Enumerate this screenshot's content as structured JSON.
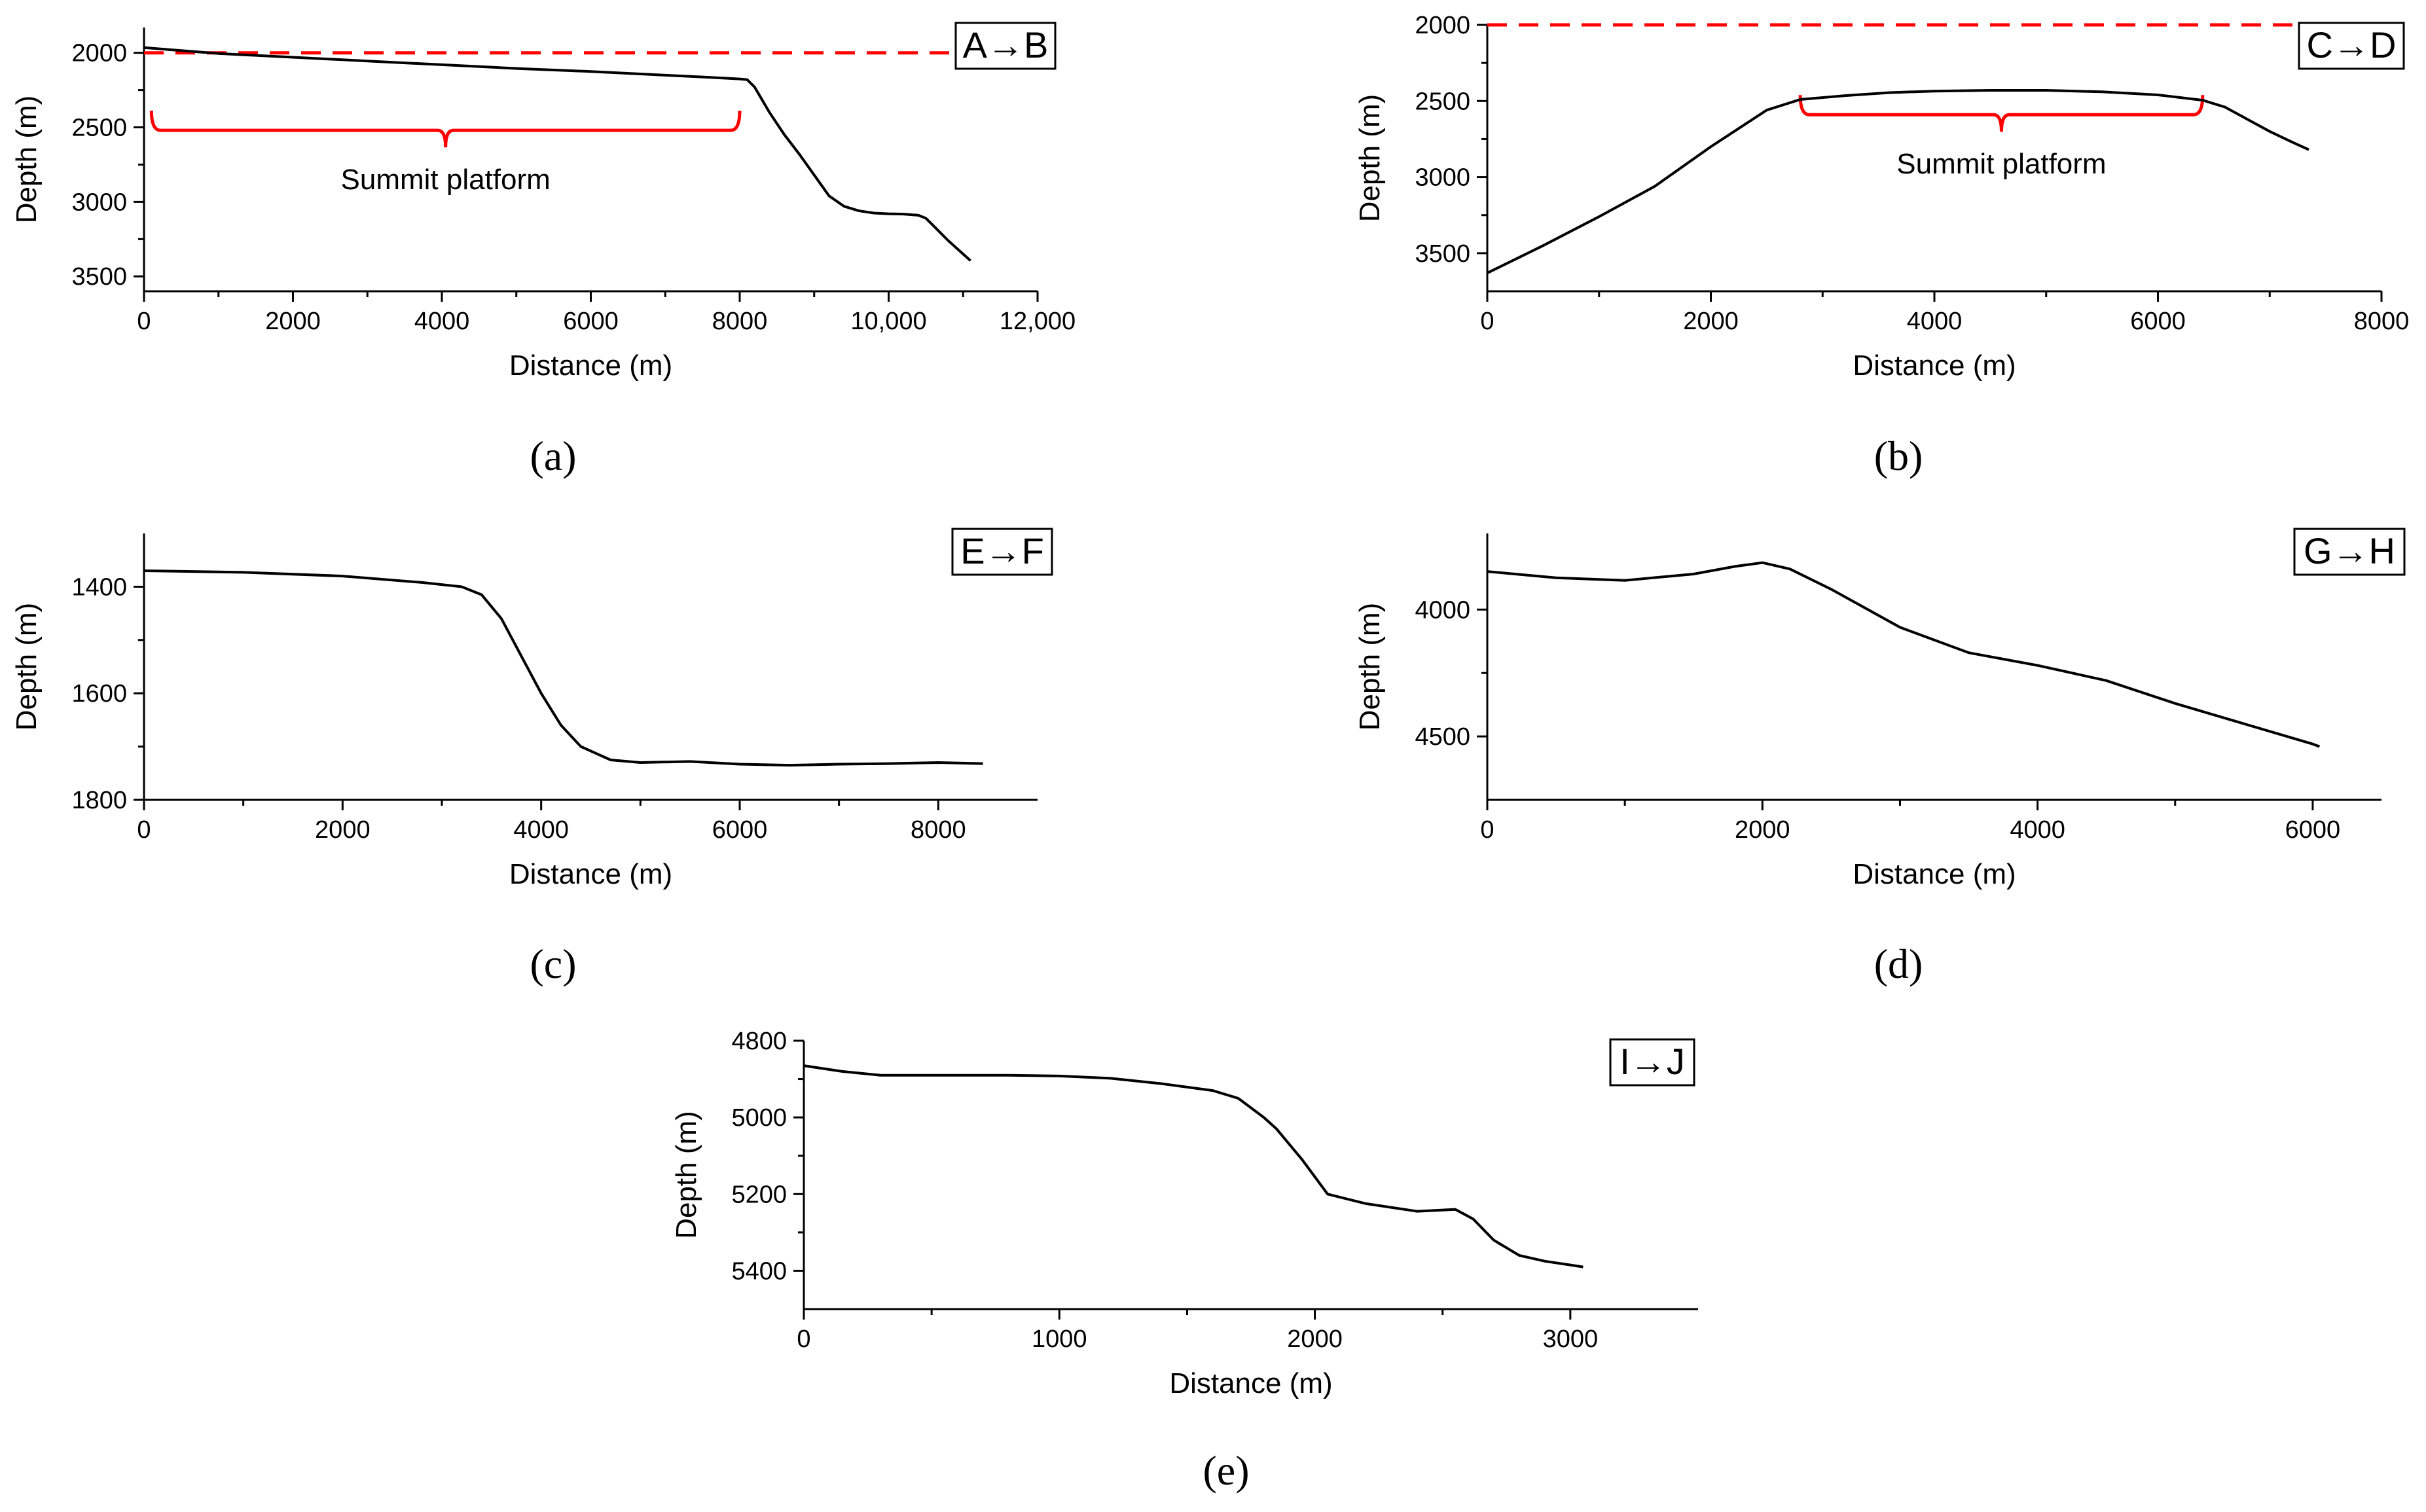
{
  "figure": {
    "captions": [
      "(a)",
      "(b)",
      "(c)",
      "(d)",
      "(e)"
    ]
  },
  "chart_data": [
    {
      "id": "a",
      "type": "line",
      "legend": "A→B",
      "xlabel": "Distance (m)",
      "ylabel": "Depth (m)",
      "xlim": [
        0,
        12000
      ],
      "ylim": [
        1830,
        3600
      ],
      "x_ticks": [
        0,
        2000,
        4000,
        6000,
        8000,
        10000,
        12000
      ],
      "x_tick_labels": [
        "0",
        "2000",
        "4000",
        "6000",
        "8000",
        "10,000",
        "12,000"
      ],
      "y_ticks": [
        2000,
        2500,
        3000,
        3500
      ],
      "y_tick_labels": [
        "2000",
        "2500",
        "3000",
        "3500"
      ],
      "y_inverted": true,
      "series": [
        {
          "name": "A→B",
          "x": [
            0,
            500,
            1000,
            2000,
            3000,
            4000,
            5000,
            6000,
            7000,
            7500,
            8000,
            8100,
            8200,
            8400,
            8600,
            8800,
            9000,
            9200,
            9400,
            9600,
            9800,
            10000,
            10200,
            10400,
            10500,
            10600,
            10800,
            11000,
            11100
          ],
          "y": [
            1965,
            1985,
            2005,
            2030,
            2055,
            2080,
            2105,
            2125,
            2150,
            2162,
            2175,
            2180,
            2230,
            2400,
            2550,
            2680,
            2820,
            2960,
            3030,
            3060,
            3075,
            3080,
            3082,
            3090,
            3110,
            3160,
            3260,
            3350,
            3395
          ]
        }
      ],
      "reference_line": {
        "y": 2000,
        "color": "#ff0000",
        "style": "dashed"
      },
      "bracket": {
        "x_start": 100,
        "x_end": 8000,
        "y": 2520,
        "color": "#ff0000"
      },
      "annotation": "Summit platform"
    },
    {
      "id": "b",
      "type": "line",
      "legend": "C→D",
      "xlabel": "Distance (m)",
      "ylabel": "Depth (m)",
      "xlim": [
        0,
        8000
      ],
      "ylim": [
        2000,
        3750
      ],
      "x_ticks": [
        0,
        2000,
        4000,
        6000,
        8000
      ],
      "x_tick_labels": [
        "0",
        "2000",
        "4000",
        "6000",
        "8000"
      ],
      "y_ticks": [
        2000,
        2500,
        3000,
        3500
      ],
      "y_tick_labels": [
        "2000",
        "2500",
        "3000",
        "3500"
      ],
      "y_inverted": true,
      "series": [
        {
          "name": "C→D",
          "x": [
            0,
            500,
            1000,
            1500,
            2000,
            2500,
            2800,
            3200,
            3600,
            4000,
            4500,
            5000,
            5500,
            6000,
            6400,
            6600,
            6800,
            7000,
            7200,
            7350
          ],
          "y": [
            3630,
            3450,
            3260,
            3060,
            2800,
            2560,
            2490,
            2465,
            2445,
            2435,
            2430,
            2430,
            2440,
            2460,
            2495,
            2540,
            2620,
            2700,
            2770,
            2820
          ]
        }
      ],
      "reference_line": {
        "y": 2000,
        "color": "#ff0000",
        "style": "dashed"
      },
      "bracket": {
        "x_start": 2800,
        "x_end": 6400,
        "y": 2590,
        "color": "#ff0000"
      },
      "annotation": "Summit platform"
    },
    {
      "id": "c",
      "type": "line",
      "legend": "E→F",
      "xlabel": "Distance (m)",
      "ylabel": "Depth (m)",
      "xlim": [
        0,
        9000
      ],
      "ylim": [
        1300,
        1800
      ],
      "x_ticks": [
        0,
        2000,
        4000,
        6000,
        8000
      ],
      "x_tick_labels": [
        "0",
        "2000",
        "4000",
        "6000",
        "8000"
      ],
      "y_ticks": [
        1400,
        1600,
        1800
      ],
      "y_tick_labels": [
        "1400",
        "1600",
        "1800"
      ],
      "y_inverted": true,
      "series": [
        {
          "name": "E→F",
          "x": [
            0,
            1000,
            2000,
            2800,
            3200,
            3400,
            3600,
            3800,
            4000,
            4200,
            4400,
            4700,
            5000,
            5500,
            6000,
            6500,
            7000,
            7500,
            8000,
            8450
          ],
          "y": [
            1370,
            1373,
            1380,
            1392,
            1400,
            1415,
            1460,
            1530,
            1600,
            1660,
            1700,
            1725,
            1730,
            1728,
            1733,
            1735,
            1733,
            1732,
            1730,
            1732
          ]
        }
      ]
    },
    {
      "id": "d",
      "type": "line",
      "legend": "G→H",
      "xlabel": "Distance (m)",
      "ylabel": "Depth (m)",
      "xlim": [
        0,
        6500
      ],
      "ylim": [
        3700,
        4750
      ],
      "x_ticks": [
        0,
        2000,
        4000,
        6000
      ],
      "x_tick_labels": [
        "0",
        "2000",
        "4000",
        "6000"
      ],
      "y_ticks": [
        4000,
        4500
      ],
      "y_tick_labels": [
        "4000",
        "4500"
      ],
      "y_inverted": true,
      "series": [
        {
          "name": "G→H",
          "x": [
            0,
            500,
            1000,
            1500,
            1800,
            2000,
            2200,
            2500,
            3000,
            3500,
            4000,
            4500,
            5000,
            5500,
            6000,
            6050
          ],
          "y": [
            3850,
            3875,
            3885,
            3860,
            3830,
            3815,
            3840,
            3920,
            4070,
            4170,
            4220,
            4280,
            4370,
            4450,
            4530,
            4540
          ]
        }
      ]
    },
    {
      "id": "e",
      "type": "line",
      "legend": "I→J",
      "xlabel": "Distance (m)",
      "ylabel": "Depth (m)",
      "xlim": [
        0,
        3500
      ],
      "ylim": [
        4800,
        5500
      ],
      "x_ticks": [
        0,
        1000,
        2000,
        3000
      ],
      "x_tick_labels": [
        "0",
        "1000",
        "2000",
        "3000"
      ],
      "y_ticks": [
        4800,
        5000,
        5200,
        5400
      ],
      "y_tick_labels": [
        "4800",
        "5000",
        "5200",
        "5400"
      ],
      "y_inverted": true,
      "series": [
        {
          "name": "I→J",
          "x": [
            0,
            150,
            300,
            500,
            800,
            1000,
            1200,
            1400,
            1600,
            1700,
            1800,
            1850,
            1950,
            2050,
            2200,
            2400,
            2550,
            2620,
            2700,
            2800,
            2900,
            3000,
            3050
          ],
          "y": [
            4865,
            4880,
            4890,
            4890,
            4890,
            4892,
            4898,
            4912,
            4930,
            4950,
            5000,
            5030,
            5110,
            5200,
            5225,
            5245,
            5240,
            5265,
            5320,
            5360,
            5375,
            5385,
            5390
          ]
        }
      ]
    }
  ]
}
